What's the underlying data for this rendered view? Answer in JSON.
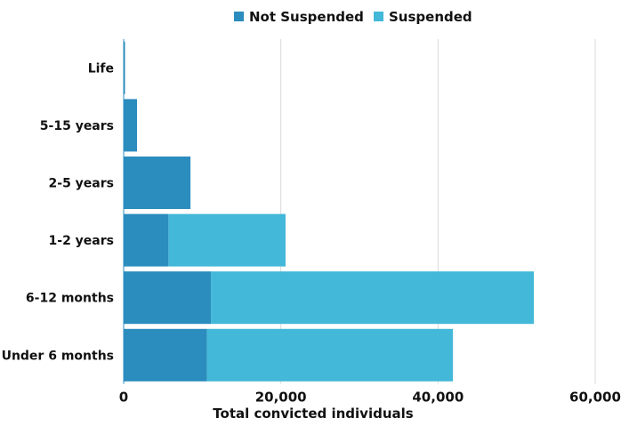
{
  "chart_data": {
    "type": "bar",
    "orientation": "horizontal",
    "stacked": true,
    "categories": [
      "Life",
      "5-15 years",
      "2-5 years",
      "1-2 years",
      "6-12 months",
      "Under 6 months"
    ],
    "series": [
      {
        "name": "Not Suspended",
        "color": "#2B8CBE",
        "values": [
          150,
          1700,
          8500,
          5700,
          11100,
          10600
        ]
      },
      {
        "name": "Suspended",
        "color": "#43B8D8",
        "values": [
          0,
          0,
          0,
          14900,
          41100,
          31300
        ]
      }
    ],
    "xlabel": "Total convicted individuals",
    "ylabel": "",
    "xlim": [
      0,
      60000
    ],
    "xticks": [
      0,
      20000,
      40000,
      60000
    ],
    "xtick_labels": [
      "0",
      "20,000",
      "40,000",
      "60,000"
    ],
    "grid": "vertical",
    "legend_position": "top-center"
  }
}
